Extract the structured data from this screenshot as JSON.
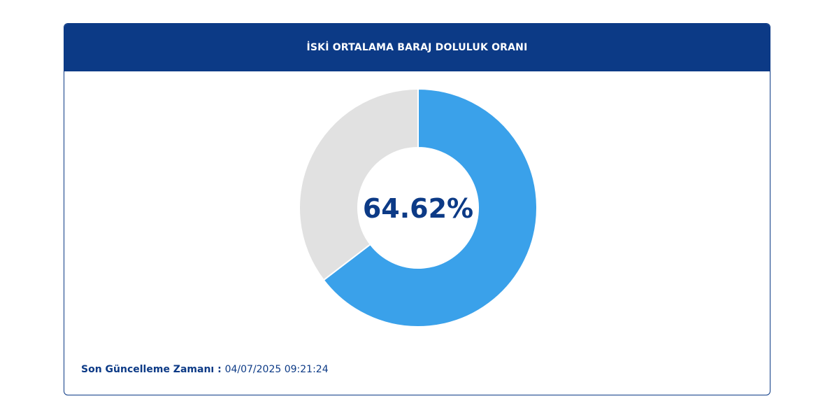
{
  "header": {
    "title": "İSKİ ORTALAMA BARAJ DOLULUK ORANI"
  },
  "chart_data": {
    "type": "pie",
    "title": "İSKİ ORTALAMA BARAJ DOLULUK ORANI",
    "center_label": "64.62%",
    "slices": [
      {
        "value": 64.62,
        "color": "#3aa1ea"
      },
      {
        "value": 35.38,
        "color": "#e1e1e1"
      }
    ]
  },
  "footer": {
    "label": "Son Güncelleme Zamanı",
    "separator": " : ",
    "timestamp": "04/07/2025 09:21:24"
  }
}
